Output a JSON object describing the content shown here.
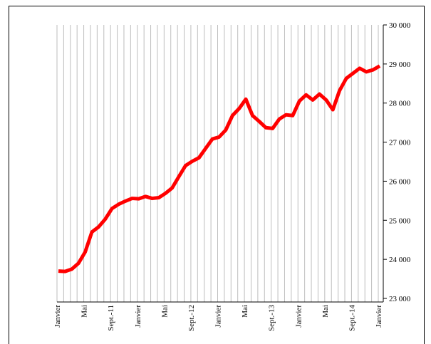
{
  "chart_data": {
    "type": "line",
    "categories": [
      "Janvier",
      null,
      null,
      null,
      "Mai",
      null,
      null,
      null,
      "Sept.-11",
      null,
      null,
      null,
      "Janvier",
      null,
      null,
      null,
      "Mai",
      null,
      null,
      null,
      "Sept.-12",
      null,
      null,
      null,
      "Janvier",
      null,
      null,
      null,
      "Mai",
      null,
      null,
      null,
      "Sept.-13",
      null,
      null,
      null,
      "Janvier",
      null,
      null,
      null,
      "Mai",
      null,
      null,
      null,
      "Sept.-14",
      null,
      null,
      null,
      "Janvier"
    ],
    "series": [
      {
        "color": "#ff0000",
        "values": [
          23700,
          23690,
          23750,
          23900,
          24190,
          24700,
          24830,
          25030,
          25300,
          25410,
          25490,
          25560,
          25550,
          25610,
          25560,
          25580,
          25690,
          25830,
          26120,
          26400,
          26510,
          26600,
          26840,
          27080,
          27130,
          27310,
          27680,
          27860,
          28100,
          27680,
          27530,
          27370,
          27350,
          27590,
          27700,
          27680,
          28050,
          28210,
          28080,
          28230,
          28080,
          27830,
          28320,
          28630,
          28760,
          28890,
          28800,
          28850,
          28950
        ]
      }
    ],
    "ylim": [
      23000,
      30000
    ],
    "yticks": [
      {
        "value": 23000,
        "label": "23 000"
      },
      {
        "value": 24000,
        "label": "24 000"
      },
      {
        "value": 25000,
        "label": "25 000"
      },
      {
        "value": 26000,
        "label": "26 000"
      },
      {
        "value": 27000,
        "label": "27 000"
      },
      {
        "value": 28000,
        "label": "28 000"
      },
      {
        "value": 29000,
        "label": "29 000"
      },
      {
        "value": 30000,
        "label": "30 000"
      }
    ],
    "grid": true
  }
}
